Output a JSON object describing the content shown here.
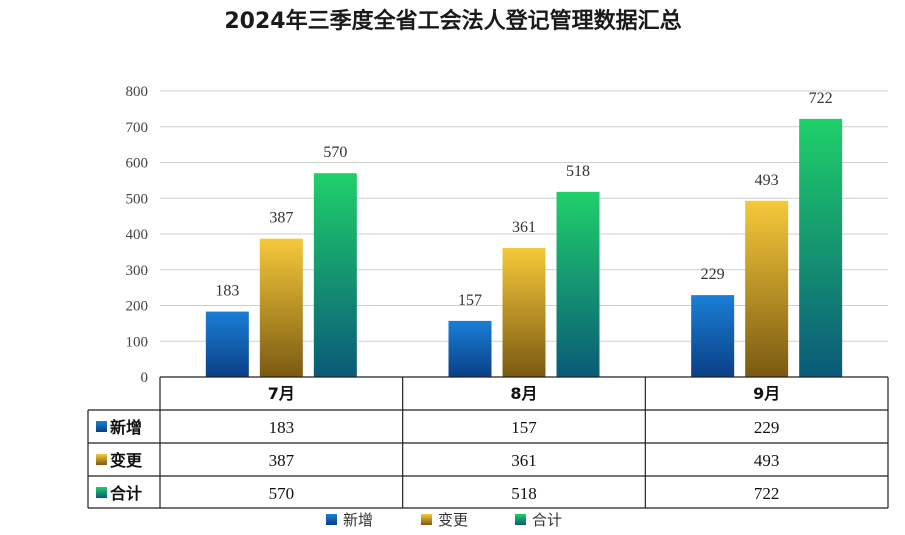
{
  "chart_data": {
    "type": "bar",
    "title": "2024年三季度全省工会法人登记管理数据汇总",
    "categories": [
      "7月",
      "8月",
      "9月"
    ],
    "series": [
      {
        "name": "新增",
        "values": [
          183,
          157,
          229
        ],
        "color_top": "#1a7fd6",
        "color_bottom": "#0a3f86"
      },
      {
        "name": "变更",
        "values": [
          387,
          361,
          493
        ],
        "color_top": "#f6c93a",
        "color_bottom": "#7a5a12"
      },
      {
        "name": "合计",
        "values": [
          570,
          518,
          722
        ],
        "color_top": "#1fd06a",
        "color_bottom": "#0a5a78"
      }
    ],
    "ylim": [
      0,
      800
    ],
    "yticks": [
      0,
      100,
      200,
      300,
      400,
      500,
      600,
      700,
      800
    ],
    "grid": true,
    "legend": "bottom",
    "data_table": true
  }
}
